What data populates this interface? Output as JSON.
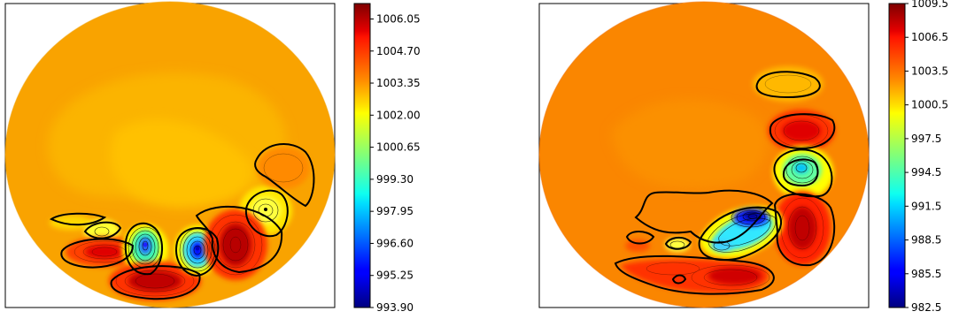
{
  "chart_data": [
    {
      "type": "heatmap",
      "title": "",
      "xlabel": "",
      "ylabel": "",
      "colormap": "jet",
      "background_level": 1003.35,
      "colorbar": {
        "range": [
          993.9,
          1006.7
        ],
        "ticks": [
          1006.05,
          1004.7,
          1003.35,
          1002.0,
          1000.65,
          999.3,
          997.95,
          996.6,
          995.25,
          993.9
        ],
        "tick_labels": [
          "1006.05",
          "1004.70",
          "1003.35",
          "1002.00",
          "1000.65",
          "999.30",
          "997.95",
          "996.60",
          "995.25",
          "993.90"
        ]
      },
      "features": [
        {
          "kind": "low",
          "value": 996.0
        },
        {
          "kind": "low",
          "value": 995.5
        },
        {
          "kind": "high",
          "value": 1005.6
        },
        {
          "kind": "high",
          "value": 1005.8
        },
        {
          "kind": "high",
          "value": 1006.0
        },
        {
          "kind": "low",
          "value": 1001.2
        },
        {
          "kind": "low",
          "value": 1000.6
        },
        {
          "kind": "high",
          "value": 1004.0
        },
        {
          "kind": "low",
          "value": 1002.3
        }
      ]
    },
    {
      "type": "heatmap",
      "title": "",
      "xlabel": "",
      "ylabel": "",
      "colormap": "jet",
      "background_level": 1004.0,
      "colorbar": {
        "range": [
          982.5,
          1009.5
        ],
        "ticks": [
          1009.5,
          1006.5,
          1003.5,
          1000.5,
          997.5,
          994.5,
          991.5,
          988.5,
          985.5,
          982.5
        ],
        "tick_labels": [
          "1009.5",
          "1006.5",
          "1003.5",
          "1000.5",
          "997.5",
          "994.5",
          "991.5",
          "988.5",
          "985.5",
          "982.5"
        ]
      },
      "features": [
        {
          "kind": "low",
          "value": 985.0
        },
        {
          "kind": "low",
          "value": 991.0
        },
        {
          "kind": "low",
          "value": 994.0
        },
        {
          "kind": "low",
          "value": 996.5
        },
        {
          "kind": "high",
          "value": 1006.5
        },
        {
          "kind": "high",
          "value": 1007.5
        },
        {
          "kind": "high",
          "value": 1006.0
        },
        {
          "kind": "high",
          "value": 1002.5
        }
      ]
    }
  ]
}
